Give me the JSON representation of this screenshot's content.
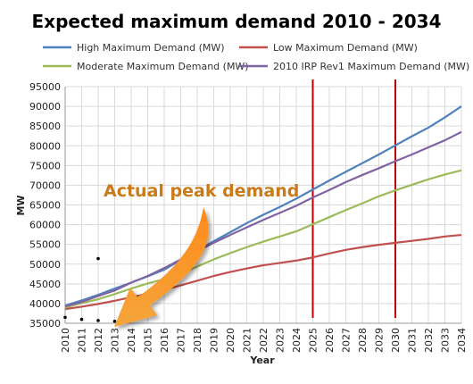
{
  "chart_data": {
    "type": "line",
    "title": "Expected maximum demand 2010 - 2034",
    "xlabel": "Year",
    "ylabel": "MW",
    "x": [
      2010,
      2011,
      2012,
      2013,
      2014,
      2015,
      2016,
      2017,
      2018,
      2019,
      2020,
      2021,
      2022,
      2023,
      2024,
      2025,
      2026,
      2027,
      2028,
      2029,
      2030,
      2031,
      2032,
      2033,
      2034
    ],
    "ylim": [
      35000,
      95000
    ],
    "yticks": [
      35000,
      40000,
      45000,
      50000,
      55000,
      60000,
      65000,
      70000,
      75000,
      80000,
      85000,
      90000,
      95000
    ],
    "grid": true,
    "legend_position": "top",
    "series": [
      {
        "name": "High Maximum Demand (MW)",
        "color": "#4f81bd",
        "values": [
          39500,
          40800,
          42200,
          43800,
          45300,
          46900,
          48600,
          51000,
          53400,
          55800,
          58100,
          60400,
          62500,
          64500,
          66600,
          68900,
          71200,
          73400,
          75600,
          77800,
          80100,
          82400,
          84600,
          87200,
          90000
        ]
      },
      {
        "name": "Low Maximum Demand (MW)",
        "color": "#c0504d",
        "values": [
          38600,
          39200,
          39900,
          40700,
          41600,
          42500,
          43500,
          44600,
          45800,
          47000,
          48000,
          48900,
          49700,
          50300,
          50900,
          51700,
          52700,
          53600,
          54300,
          54900,
          55400,
          55900,
          56400,
          57000,
          57400
        ]
      },
      {
        "name": "Moderate Maximum Demand (MW)",
        "color": "#9bbb59",
        "values": [
          39000,
          40100,
          41100,
          42400,
          43800,
          45100,
          46200,
          47500,
          49400,
          51200,
          52800,
          54300,
          55700,
          57000,
          58300,
          60100,
          61900,
          63700,
          65400,
          67200,
          68700,
          70100,
          71500,
          72700,
          73800
        ]
      },
      {
        "name": "2010 IRP Rev1 Maximum Demand (MW)",
        "color": "#8064a2",
        "values": [
          39300,
          40400,
          41900,
          43300,
          45300,
          47000,
          49000,
          51200,
          53300,
          55400,
          57400,
          59300,
          61200,
          63000,
          64800,
          66900,
          68800,
          70800,
          72600,
          74300,
          76100,
          77800,
          79600,
          81400,
          83500
        ]
      }
    ],
    "reference_lines": [
      {
        "x": 2025,
        "color": "#c00000"
      },
      {
        "x": 2030,
        "color": "#c00000"
      }
    ],
    "actual_points": [
      {
        "x": 2010,
        "y": 36500
      },
      {
        "x": 2011,
        "y": 36000
      },
      {
        "x": 2012,
        "y": 35700
      },
      {
        "x": 2013,
        "y": 35500
      },
      {
        "x": 2012,
        "y": 51400
      }
    ],
    "annotation": {
      "text": "Actual peak demand",
      "color": "#c97b1a",
      "arrow_color": "#f39220"
    }
  }
}
